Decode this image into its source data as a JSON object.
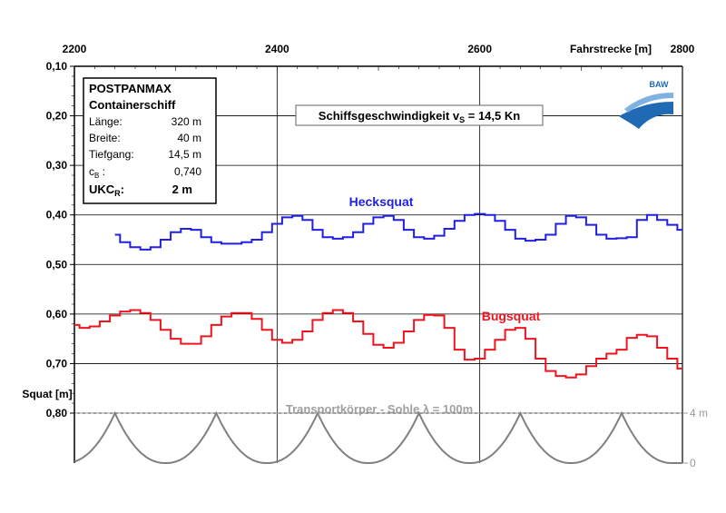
{
  "chart_data": {
    "type": "line",
    "x_axis": {
      "label": "Fahrstrecke [m]",
      "range": [
        2200,
        2800
      ],
      "ticks": [
        "2200",
        "2400",
        "2600",
        "2800"
      ],
      "position": "top"
    },
    "y_axis": {
      "label": "Squat [m]",
      "range": [
        0.1,
        0.8
      ],
      "inverted": true,
      "ticks": [
        "0,10",
        "0,20",
        "0,30",
        "0,40",
        "0,50",
        "0,60",
        "0,70",
        "0,80"
      ]
    },
    "secondary_axis": {
      "ticks": [
        "4 m",
        "0"
      ],
      "range": [
        0,
        4
      ],
      "position": "right"
    },
    "grid": true,
    "speed_label": "Schiffsgeschwindigkeit v",
    "speed_sub": "S",
    "speed_value": " = 14,5 Kn",
    "info_box": {
      "title": "POSTPANMAX",
      "subtitle": "Containerschiff",
      "rows": [
        {
          "label": "Länge:",
          "value": "320 m"
        },
        {
          "label": "Breite:",
          "value": "40 m"
        },
        {
          "label": "Tiefgang:",
          "value": "14,5 m"
        },
        {
          "label": "c",
          "sub": "B",
          "label_suffix": " :",
          "value": "0,740"
        }
      ],
      "ukc_label": "UKC",
      "ukc_sub": "R",
      "ukc_label_suffix": ":",
      "ukc_value": "2 m"
    },
    "logo_text": "BAW",
    "bottom_label": "Transportkörper - Sohle  λ = 100m",
    "series": [
      {
        "name": "Hecksquat",
        "color": "#1f1fe6",
        "x": [
          2240,
          2250,
          2260,
          2270,
          2280,
          2290,
          2300,
          2310,
          2320,
          2330,
          2340,
          2350,
          2360,
          2370,
          2380,
          2390,
          2400,
          2410,
          2420,
          2430,
          2440,
          2450,
          2460,
          2470,
          2480,
          2490,
          2500,
          2510,
          2520,
          2530,
          2540,
          2550,
          2560,
          2570,
          2580,
          2590,
          2600,
          2610,
          2620,
          2630,
          2640,
          2650,
          2660,
          2670,
          2680,
          2690,
          2700,
          2710,
          2720,
          2730,
          2740,
          2750,
          2760,
          2770,
          2780,
          2790,
          2800
        ],
        "y": [
          0.44,
          0.455,
          0.465,
          0.47,
          0.465,
          0.45,
          0.435,
          0.428,
          0.43,
          0.445,
          0.455,
          0.458,
          0.458,
          0.455,
          0.45,
          0.435,
          0.418,
          0.405,
          0.402,
          0.41,
          0.43,
          0.445,
          0.448,
          0.445,
          0.435,
          0.418,
          0.405,
          0.402,
          0.41,
          0.43,
          0.445,
          0.448,
          0.442,
          0.428,
          0.412,
          0.4,
          0.398,
          0.4,
          0.412,
          0.43,
          0.448,
          0.452,
          0.45,
          0.44,
          0.418,
          0.402,
          0.405,
          0.42,
          0.44,
          0.448,
          0.447,
          0.445,
          0.41,
          0.4,
          0.41,
          0.42,
          0.43
        ]
      },
      {
        "name": "Bugsquat",
        "color": "#f0141e",
        "x": [
          2200,
          2210,
          2220,
          2230,
          2240,
          2250,
          2260,
          2270,
          2280,
          2290,
          2300,
          2310,
          2320,
          2330,
          2340,
          2350,
          2360,
          2370,
          2380,
          2390,
          2400,
          2410,
          2420,
          2430,
          2440,
          2450,
          2460,
          2470,
          2480,
          2490,
          2500,
          2510,
          2520,
          2530,
          2540,
          2550,
          2560,
          2570,
          2580,
          2590,
          2600,
          2610,
          2620,
          2630,
          2640,
          2650,
          2660,
          2670,
          2680,
          2690,
          2700,
          2710,
          2720,
          2730,
          2740,
          2750,
          2760,
          2770,
          2780,
          2790,
          2800
        ],
        "y": [
          0.622,
          0.628,
          0.625,
          0.615,
          0.603,
          0.595,
          0.592,
          0.598,
          0.612,
          0.632,
          0.65,
          0.66,
          0.66,
          0.645,
          0.622,
          0.605,
          0.598,
          0.598,
          0.61,
          0.632,
          0.652,
          0.658,
          0.652,
          0.635,
          0.612,
          0.598,
          0.592,
          0.598,
          0.615,
          0.64,
          0.662,
          0.668,
          0.658,
          0.635,
          0.612,
          0.602,
          0.603,
          0.628,
          0.672,
          0.692,
          0.69,
          0.672,
          0.652,
          0.632,
          0.628,
          0.65,
          0.69,
          0.715,
          0.725,
          0.728,
          0.722,
          0.705,
          0.69,
          0.68,
          0.672,
          0.648,
          0.642,
          0.645,
          0.668,
          0.69,
          0.71
        ]
      },
      {
        "name": "Transportkörper - Sohle",
        "color": "#808080",
        "kind": "bedform",
        "wavelength": 100,
        "crests": [
          2240,
          2340,
          2440,
          2540,
          2640,
          2740
        ],
        "height_range": [
          0,
          4
        ]
      }
    ]
  }
}
